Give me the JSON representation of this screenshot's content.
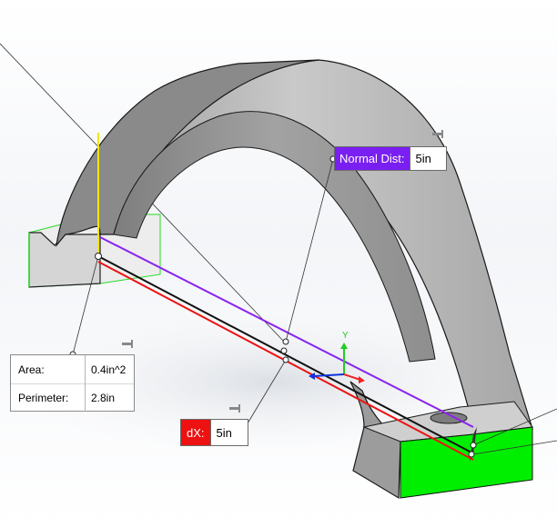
{
  "normal_distance": {
    "label": "Normal Dist:",
    "value": "5in"
  },
  "dx_measure": {
    "label": "dX:",
    "value": "5in"
  },
  "section_properties": {
    "rows": [
      {
        "label": "Area:",
        "value": "0.4in^2"
      },
      {
        "label": "Perimeter:",
        "value": "2.8in"
      }
    ]
  },
  "triad_axis_label": "Y",
  "colors": {
    "normal_dist": "#7a1ff2",
    "dx": "#ee1111",
    "selected_face": "#00ee00",
    "model_face": "#b9b9b9",
    "y_axis": "#22cc22",
    "vertical_edge": "#f0e800"
  },
  "icons": [
    "pin-icon",
    "reference-triad-icon"
  ]
}
